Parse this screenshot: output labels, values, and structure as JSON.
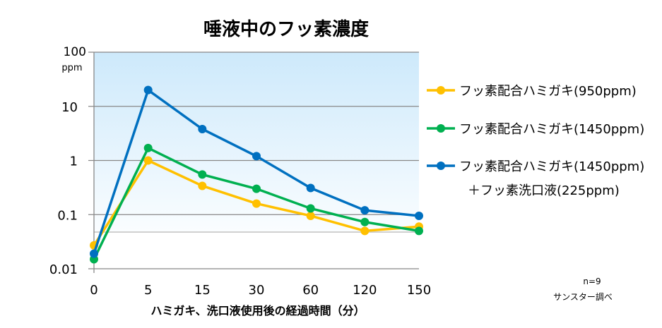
{
  "chart_data": {
    "type": "line",
    "title": "唾液中のフッ素濃度",
    "xlabel": "ハミガキ、洗口液使用後の経過時間（分）",
    "ylabel": "ppm",
    "yscale": "log",
    "ylim": [
      0.01,
      100
    ],
    "yticks": [
      "100",
      "10",
      "1",
      "0.1",
      "0.01"
    ],
    "ytick_values": [
      100,
      10,
      1,
      0.1,
      0.01
    ],
    "categories": [
      "0",
      "5",
      "15",
      "30",
      "60",
      "120",
      "150"
    ],
    "grid": true,
    "legend_position": "right",
    "series": [
      {
        "name": "フッ素配合ハミガキ(950ppm)",
        "color": "#FFC000",
        "values": [
          0.027,
          1.0,
          0.34,
          0.16,
          0.095,
          0.05,
          0.06
        ]
      },
      {
        "name": "フッ素配合ハミガキ(1450ppm)",
        "color": "#00B050",
        "values": [
          0.015,
          1.7,
          0.55,
          0.3,
          0.13,
          0.073,
          0.05
        ]
      },
      {
        "name": "フッ素配合ハミガキ(1450ppm)",
        "name_line2": "＋フッ素洗口液(225ppm)",
        "color": "#0070C0",
        "values": [
          0.019,
          20,
          3.8,
          1.2,
          0.31,
          0.12,
          0.095
        ]
      }
    ],
    "annotations": [
      "n=9",
      "サンスター調べ"
    ]
  }
}
